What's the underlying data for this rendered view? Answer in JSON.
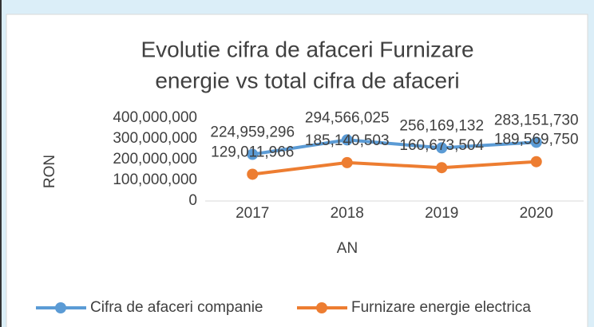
{
  "chart_data": {
    "type": "line",
    "title": [
      "Evolutie cifra de afaceri  Furnizare",
      "energie vs total cifra de afaceri"
    ],
    "x_label": "AN",
    "y_label": "RON",
    "categories": [
      "2017",
      "2018",
      "2019",
      "2020"
    ],
    "series": [
      {
        "name": "Cifra de afaceri companie",
        "color": "#5b9bd5",
        "values": [
          224959296,
          294566025,
          256169132,
          283151730
        ],
        "value_labels": [
          "224,959,296",
          "294,566,025",
          "256,169,132",
          "283,151,730"
        ]
      },
      {
        "name": "Furnizare energie electrica",
        "color": "#ed7d31",
        "values": [
          129011966,
          185140503,
          160673504,
          189569750
        ],
        "value_labels": [
          "129,011,966",
          "185,140,503",
          "160,673,504",
          "189,569,750"
        ]
      }
    ],
    "ylim": [
      0,
      400000000
    ],
    "yticks": [
      {
        "value": 0,
        "label": "0"
      },
      {
        "value": 100000000,
        "label": "100,000,000"
      },
      {
        "value": 200000000,
        "label": "200,000,000"
      },
      {
        "value": 300000000,
        "label": "300,000,000"
      },
      {
        "value": 400000000,
        "label": "400,000,000"
      }
    ],
    "grid": false,
    "legend": "bottom"
  }
}
